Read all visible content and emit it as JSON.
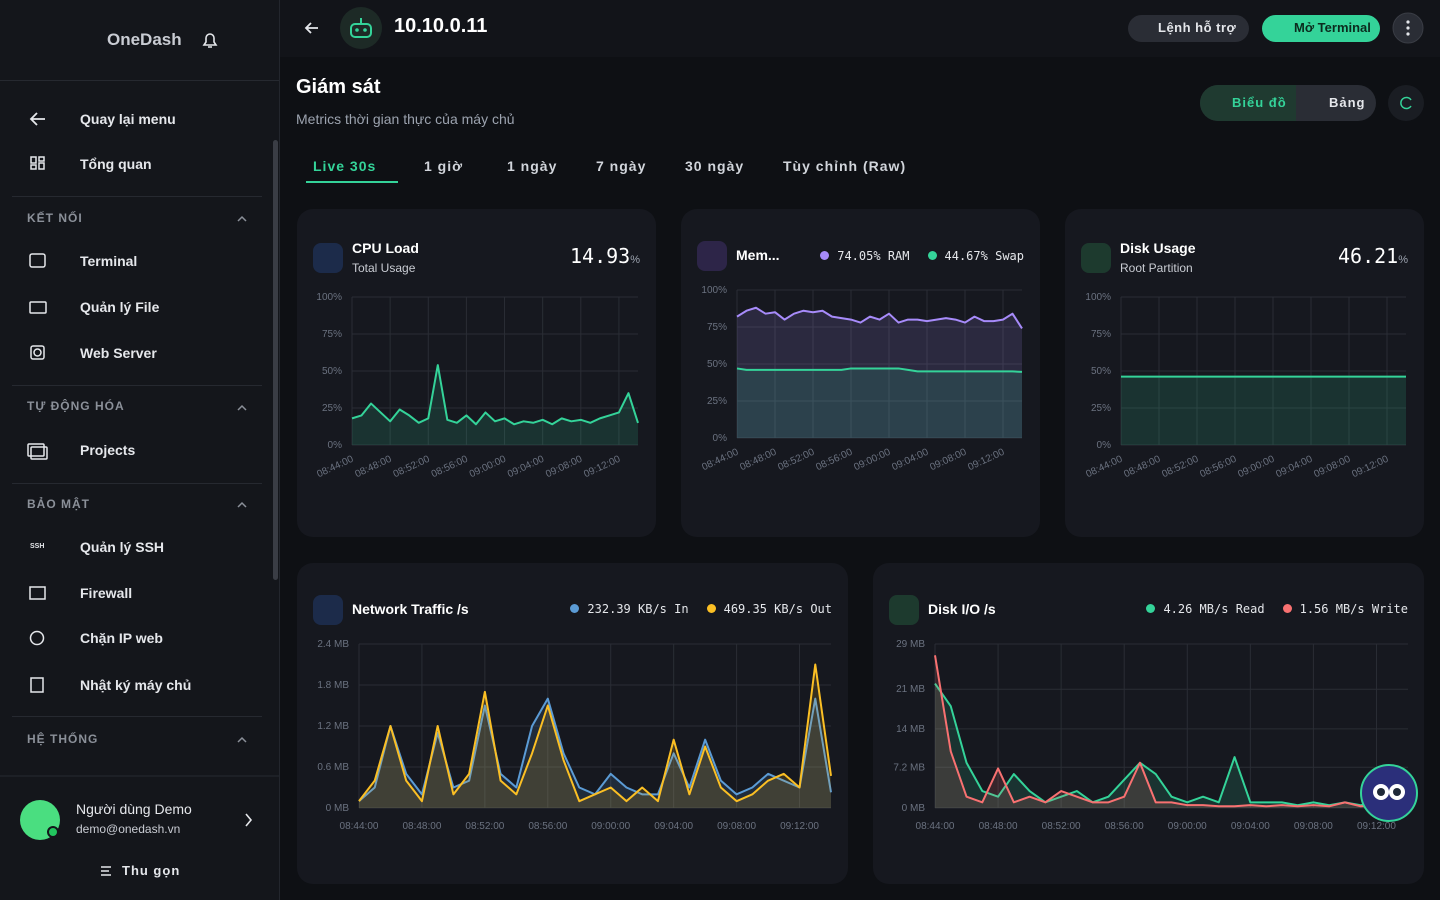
{
  "sidebar": {
    "logo": "OneDash",
    "nav": [
      "Quay lại menu",
      "Tổng quan"
    ],
    "sections": [
      {
        "title": "KẾT NỐI",
        "items": [
          "Terminal",
          "Quản lý File",
          "Web Server"
        ]
      },
      {
        "title": "TỰ ĐỘNG HÓA",
        "items": [
          "Projects"
        ]
      },
      {
        "title": "BẢO MẬT",
        "items": [
          "Quản lý SSH",
          "Firewall",
          "Chặn IP web",
          "Nhật ký máy chủ"
        ]
      },
      {
        "title": "HỆ THỐNG",
        "items": []
      }
    ],
    "ssh_icon": "SSH",
    "user": {
      "name": "Người dùng Demo",
      "email": "demo@onedash.vn"
    },
    "collapse": "Thu gọn"
  },
  "header": {
    "host": "10.10.0.11",
    "help_button": "Lệnh hỗ trợ",
    "terminal_button": "Mở Terminal"
  },
  "page": {
    "title": "Giám sát",
    "subtitle": "Metrics thời gian thực của máy chủ",
    "views": [
      "Biểu đồ",
      "Bảng"
    ],
    "tabs": [
      "Live 30s",
      "1 giờ",
      "1 ngày",
      "7 ngày",
      "30 ngày",
      "Tùy chỉnh (Raw)"
    ]
  },
  "chart_data": [
    {
      "type": "area",
      "title": "CPU Load",
      "subtitle": "Total Usage",
      "current": "14.93",
      "unit": "%",
      "color": "#34d399",
      "categories": [
        "08:44:00",
        null,
        null,
        null,
        "08:48:00",
        null,
        null,
        null,
        "08:52:00",
        null,
        null,
        null,
        "08:56:00",
        null,
        null,
        null,
        "09:00:00",
        null,
        null,
        null,
        "09:04:00",
        null,
        null,
        null,
        "09:08:00",
        null,
        null,
        null,
        "09:12:00",
        null,
        null
      ],
      "values": [
        18,
        20,
        28,
        22,
        16,
        24,
        20,
        15,
        18,
        54,
        17,
        15,
        20,
        14,
        22,
        16,
        18,
        14,
        16,
        15,
        17,
        14,
        18,
        16,
        17,
        15,
        18,
        20,
        22,
        35,
        14.93
      ],
      "ylim": [
        0,
        100
      ],
      "yticks": [
        {
          "value": 0,
          "label": "0%"
        },
        {
          "value": 25,
          "label": "25%"
        },
        {
          "value": 50,
          "label": "50%"
        },
        {
          "value": 75,
          "label": "75%"
        },
        {
          "value": 100,
          "label": "100%"
        }
      ],
      "grid": true
    },
    {
      "type": "area",
      "title": "Mem...",
      "categories": [
        "08:44:00",
        null,
        null,
        null,
        "08:48:00",
        null,
        null,
        null,
        "08:52:00",
        null,
        null,
        null,
        "08:56:00",
        null,
        null,
        null,
        "09:00:00",
        null,
        null,
        null,
        "09:04:00",
        null,
        null,
        null,
        "09:08:00",
        null,
        null,
        null,
        "09:12:00",
        null,
        null
      ],
      "series": [
        {
          "name": "RAM",
          "current": "74.05%",
          "color": "#a78bfa",
          "values": [
            82,
            86,
            88,
            84,
            85,
            80,
            84,
            86,
            85,
            86,
            82,
            81,
            80,
            78,
            82,
            80,
            84,
            78,
            80,
            80,
            79,
            80,
            81,
            80,
            78,
            82,
            79,
            79,
            80,
            84,
            74.05
          ]
        },
        {
          "name": "Swap",
          "current": "44.67%",
          "color": "#34d399",
          "values": [
            47,
            46,
            46,
            46,
            46,
            46,
            46,
            46,
            46,
            46,
            46,
            46,
            47,
            47,
            47,
            47,
            47,
            47,
            46,
            45,
            45,
            45,
            45,
            45,
            45,
            45,
            45,
            45,
            45,
            45,
            44.67
          ]
        }
      ],
      "ylim": [
        0,
        100
      ],
      "yticks": [
        {
          "value": 0,
          "label": "0%"
        },
        {
          "value": 25,
          "label": "25%"
        },
        {
          "value": 50,
          "label": "50%"
        },
        {
          "value": 75,
          "label": "75%"
        },
        {
          "value": 100,
          "label": "100%"
        }
      ],
      "grid": true
    },
    {
      "type": "area",
      "title": "Disk Usage",
      "subtitle": "Root Partition",
      "current": "46.21",
      "unit": "%",
      "color": "#34d399",
      "categories": [
        "08:44:00",
        null,
        null,
        null,
        "08:48:00",
        null,
        null,
        null,
        "08:52:00",
        null,
        null,
        null,
        "08:56:00",
        null,
        null,
        null,
        "09:00:00",
        null,
        null,
        null,
        "09:04:00",
        null,
        null,
        null,
        "09:08:00",
        null,
        null,
        null,
        "09:12:00",
        null,
        null
      ],
      "values": [
        46.21,
        46.21,
        46.21,
        46.21,
        46.21,
        46.21,
        46.21,
        46.21,
        46.21,
        46.21,
        46.21,
        46.21,
        46.21,
        46.21,
        46.21,
        46.21,
        46.21,
        46.21,
        46.21,
        46.21,
        46.21,
        46.21,
        46.21,
        46.21,
        46.21,
        46.21,
        46.21,
        46.21,
        46.21,
        46.21,
        46.21
      ],
      "ylim": [
        0,
        100
      ],
      "yticks": [
        {
          "value": 0,
          "label": "0%"
        },
        {
          "value": 25,
          "label": "25%"
        },
        {
          "value": 50,
          "label": "50%"
        },
        {
          "value": 75,
          "label": "75%"
        },
        {
          "value": 100,
          "label": "100%"
        }
      ],
      "grid": true
    },
    {
      "type": "area",
      "title": "Network Traffic /s",
      "categories": [
        "08:44:00",
        null,
        null,
        null,
        "08:48:00",
        null,
        null,
        null,
        "08:52:00",
        null,
        null,
        null,
        "08:56:00",
        null,
        null,
        null,
        "09:00:00",
        null,
        null,
        null,
        "09:04:00",
        null,
        null,
        null,
        "09:08:00",
        null,
        null,
        null,
        "09:12:00",
        null,
        null
      ],
      "series": [
        {
          "name": "In",
          "current": "232.39 KB/s",
          "color": "#5b9bd5",
          "values": [
            0.1,
            0.3,
            1.2,
            0.5,
            0.2,
            1.1,
            0.3,
            0.4,
            1.5,
            0.5,
            0.3,
            1.2,
            1.6,
            0.8,
            0.3,
            0.2,
            0.5,
            0.3,
            0.2,
            0.2,
            0.8,
            0.3,
            1.0,
            0.4,
            0.2,
            0.3,
            0.5,
            0.4,
            0.3,
            1.6,
            0.23
          ]
        },
        {
          "name": "Out",
          "current": "469.35 KB/s",
          "color": "#fbbf24",
          "values": [
            0.1,
            0.4,
            1.2,
            0.4,
            0.1,
            1.2,
            0.2,
            0.5,
            1.7,
            0.4,
            0.2,
            0.8,
            1.5,
            0.7,
            0.1,
            0.2,
            0.3,
            0.1,
            0.3,
            0.1,
            1.0,
            0.2,
            0.9,
            0.3,
            0.1,
            0.2,
            0.4,
            0.5,
            0.3,
            2.1,
            0.47
          ]
        }
      ],
      "ylim": [
        0,
        2.4
      ],
      "yticks": [
        {
          "value": 0,
          "label": "0 MB"
        },
        {
          "value": 0.6,
          "label": "0.6 MB"
        },
        {
          "value": 1.2,
          "label": "1.2 MB"
        },
        {
          "value": 1.8,
          "label": "1.8 MB"
        },
        {
          "value": 2.4,
          "label": "2.4 MB"
        }
      ],
      "grid": true
    },
    {
      "type": "area",
      "title": "Disk I/O /s",
      "categories": [
        "08:44:00",
        null,
        null,
        null,
        "08:48:00",
        null,
        null,
        null,
        "08:52:00",
        null,
        null,
        null,
        "08:56:00",
        null,
        null,
        null,
        "09:00:00",
        null,
        null,
        null,
        "09:04:00",
        null,
        null,
        null,
        "09:08:00",
        null,
        null,
        null,
        "09:12:00",
        null,
        null
      ],
      "series": [
        {
          "name": "Read",
          "current": "4.26 MB/s",
          "color": "#34d399",
          "values": [
            22,
            18,
            8,
            3,
            2,
            6,
            3,
            1,
            2,
            3,
            1,
            2,
            5,
            8,
            6,
            2,
            1,
            2,
            1,
            9,
            1,
            1,
            1,
            0.5,
            1,
            0.5,
            1,
            0.5,
            1,
            3,
            4.26
          ]
        },
        {
          "name": "Write",
          "current": "1.56 MB/s",
          "color": "#f87171",
          "values": [
            27,
            10,
            2,
            1,
            7,
            1,
            2,
            1,
            3,
            2,
            1,
            1,
            2,
            8,
            1,
            1,
            0.5,
            0.5,
            0.3,
            0.3,
            0.5,
            0.3,
            0.5,
            0.3,
            0.5,
            0.3,
            1,
            0.3,
            0.5,
            6,
            1.56
          ]
        }
      ],
      "ylim": [
        0,
        29
      ],
      "yticks": [
        {
          "value": 0,
          "label": "0 MB"
        },
        {
          "value": 7.2,
          "label": "7.2 MB"
        },
        {
          "value": 14,
          "label": "14 MB"
        },
        {
          "value": 21,
          "label": "21 MB"
        },
        {
          "value": 29,
          "label": "29 MB"
        }
      ],
      "grid": true
    }
  ]
}
